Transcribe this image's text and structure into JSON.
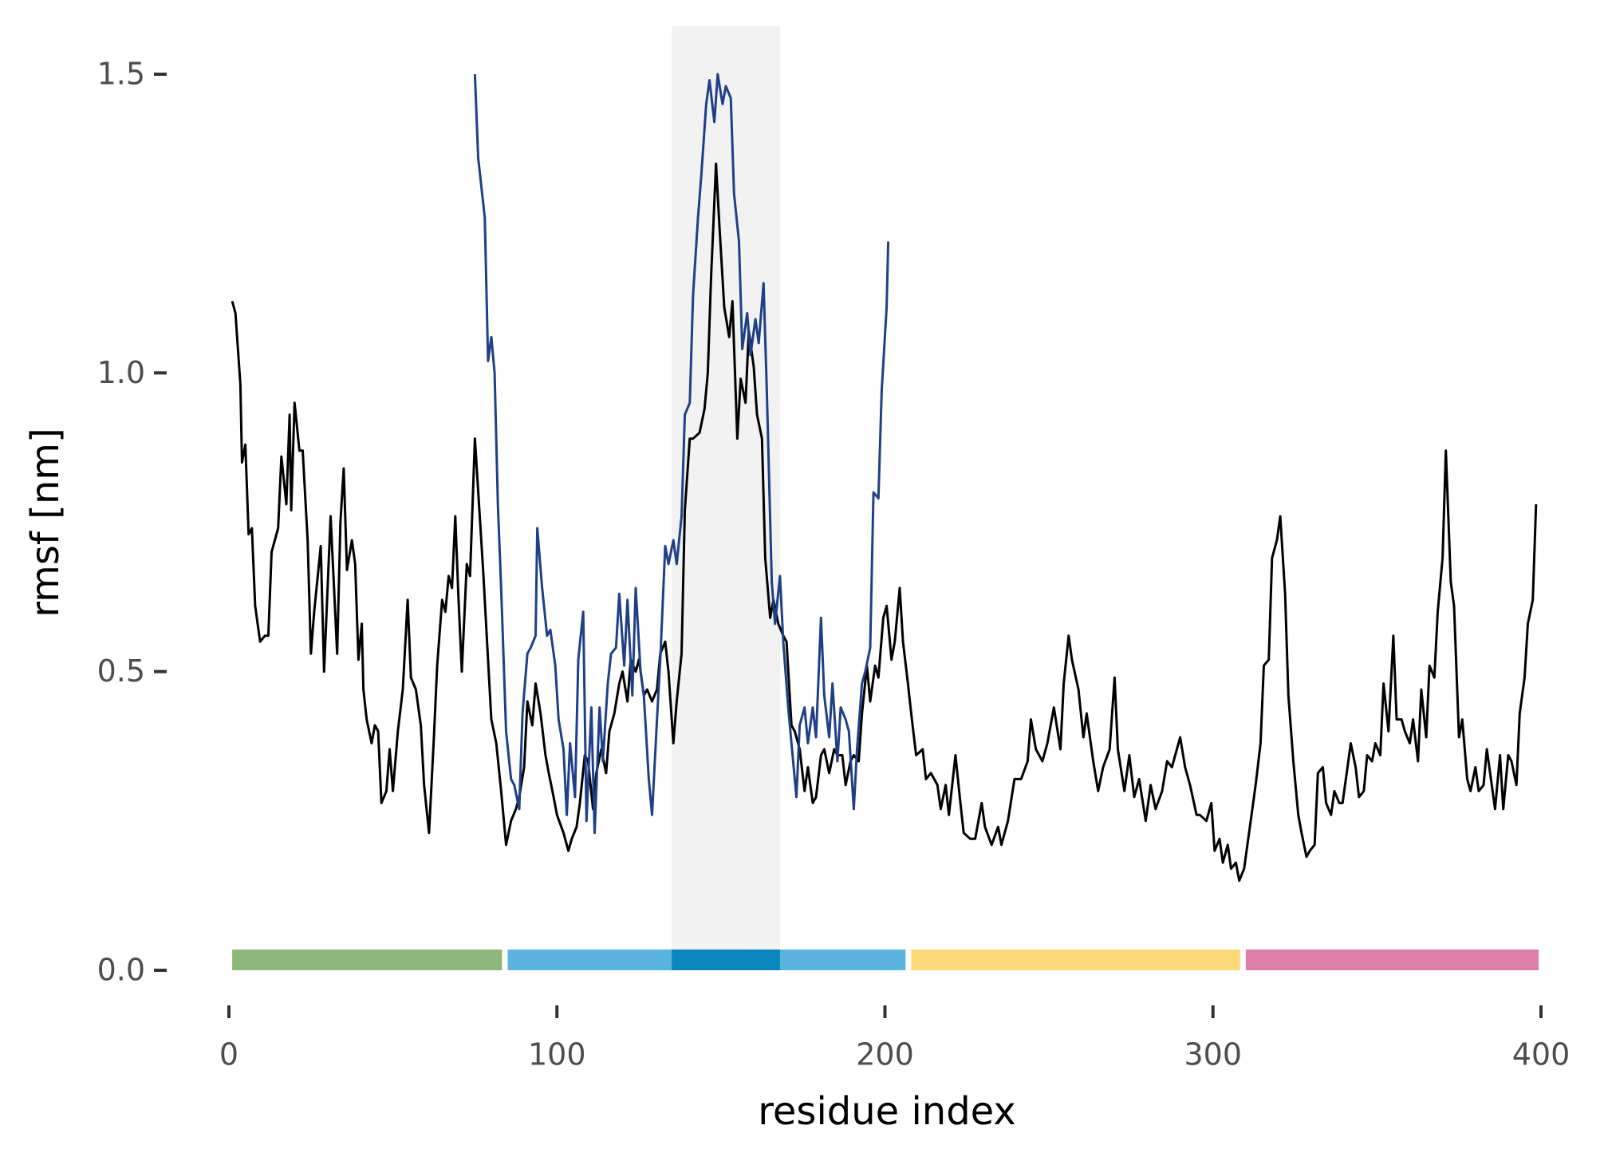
{
  "chart_data": {
    "type": "line",
    "xlabel": "residue index",
    "ylabel": "rmsf [nm]",
    "xlim": [
      0,
      400
    ],
    "ylim": [
      0,
      1.5
    ],
    "xticks": [
      0,
      100,
      200,
      300,
      400
    ],
    "yticks": [
      {
        "value": 0,
        "label": "0.0"
      },
      0.5,
      {
        "value": 1,
        "label": "1.0"
      },
      1.5
    ],
    "highlight": {
      "start": 135,
      "end": 168,
      "color": "#f2f2f2",
      "bar_color": "#0a86bf"
    },
    "domains": [
      {
        "start": 1,
        "end": 84,
        "color": "#8db87b"
      },
      {
        "start": 85,
        "end": 207,
        "color": "#5ab4dd"
      },
      {
        "start": 208,
        "end": 309,
        "color": "#fcd977"
      },
      {
        "start": 310,
        "end": 400,
        "color": "#dc7fa9"
      }
    ],
    "series": [
      {
        "color": "#000000",
        "x": [
          1,
          2,
          3.5,
          4,
          5,
          6,
          7,
          8,
          9.5,
          11,
          12,
          13,
          15,
          16,
          17.5,
          18.5,
          19,
          20,
          21.5,
          22.5,
          24,
          25,
          26,
          28,
          29,
          31,
          33,
          34,
          35,
          36,
          37.5,
          38.5,
          39.5,
          40.5,
          41,
          42,
          43.5,
          44.5,
          45.5,
          46.5,
          48,
          49,
          50,
          51.5,
          53,
          54.5,
          55.5,
          57,
          58.5,
          59.5,
          61,
          62.5,
          63.5,
          65,
          66,
          67,
          68,
          69,
          70,
          71,
          72.5,
          73.5,
          75,
          77.5,
          80,
          81.5,
          83,
          84.5,
          86,
          87.5,
          88.5,
          90,
          91,
          92.5,
          93.5,
          95,
          96.5,
          97.5,
          99,
          100,
          102,
          103.5,
          104.5,
          106,
          107,
          108.5,
          109.5,
          111,
          112,
          113.5,
          115,
          116,
          117.5,
          119,
          120,
          121.5,
          122.5,
          124,
          125,
          126.5,
          127.5,
          129,
          130.5,
          131.5,
          133,
          134,
          135.5,
          136.5,
          138,
          139,
          140.5,
          141.5,
          143.5,
          145,
          146,
          147,
          148.5,
          149.5,
          151,
          152.5,
          153.5,
          155,
          156,
          157.5,
          158.5,
          160,
          161,
          162.5,
          163.5,
          165,
          166,
          167.5,
          169,
          170,
          171.5,
          172.5,
          174,
          175.5,
          176.5,
          178,
          179,
          180.5,
          181.5,
          183,
          184.5,
          185.5,
          187,
          188,
          189.5,
          190.5,
          192,
          193,
          194.5,
          195.5,
          197,
          198,
          199.5,
          200.5,
          202,
          203,
          204.5,
          205.5,
          207,
          208,
          209.5,
          211.5,
          212.5,
          214,
          216,
          217,
          218.5,
          219.5,
          221.5,
          223,
          224,
          226,
          227.5,
          229.5,
          230.5,
          232.5,
          234.5,
          235.5,
          237.5,
          239.5,
          241.5,
          243.5,
          244.5,
          246,
          248,
          249.5,
          251.5,
          253.5,
          254.5,
          256,
          257,
          259,
          260.5,
          261.5,
          263.5,
          265,
          266.5,
          268.5,
          270,
          271,
          273,
          274.5,
          276,
          277.5,
          279.5,
          281,
          282.5,
          284.5,
          286,
          287.5,
          290,
          291.5,
          293,
          295,
          296,
          298,
          299.5,
          300.5,
          302,
          303,
          304.5,
          305.5,
          307,
          308,
          309.5,
          310.5,
          312,
          313,
          314.5,
          315.5,
          317,
          318,
          319.5,
          320.5,
          322,
          323,
          324.5,
          326,
          327,
          328.5,
          329.5,
          331,
          332,
          333.5,
          334.5,
          336,
          337,
          338.5,
          339.5,
          341,
          342,
          343.5,
          344.5,
          346,
          347,
          348.5,
          349.5,
          351,
          352,
          353.5,
          355,
          356,
          357.5,
          358.5,
          360,
          361,
          362.5,
          363.5,
          365,
          366,
          367.5,
          368.5,
          370,
          371,
          372.5,
          373.5,
          375,
          376,
          377.5,
          378.5,
          380,
          381,
          382.5,
          383.5,
          385,
          386,
          387.5,
          388.5,
          390,
          391,
          392.5,
          393.5,
          395,
          396,
          397.5,
          398.5
        ],
        "values": [
          1.12,
          1.1,
          0.98,
          0.85,
          0.88,
          0.73,
          0.74,
          0.61,
          0.55,
          0.56,
          0.56,
          0.7,
          0.74,
          0.86,
          0.78,
          0.93,
          0.77,
          0.95,
          0.87,
          0.87,
          0.72,
          0.53,
          0.6,
          0.71,
          0.5,
          0.76,
          0.53,
          0.75,
          0.84,
          0.67,
          0.72,
          0.68,
          0.52,
          0.58,
          0.47,
          0.42,
          0.38,
          0.41,
          0.4,
          0.28,
          0.3,
          0.37,
          0.3,
          0.4,
          0.47,
          0.62,
          0.49,
          0.47,
          0.41,
          0.31,
          0.23,
          0.39,
          0.51,
          0.62,
          0.6,
          0.66,
          0.64,
          0.76,
          0.62,
          0.5,
          0.68,
          0.66,
          0.89,
          0.67,
          0.42,
          0.38,
          0.3,
          0.21,
          0.25,
          0.27,
          0.29,
          0.34,
          0.45,
          0.41,
          0.48,
          0.43,
          0.36,
          0.33,
          0.29,
          0.26,
          0.23,
          0.2,
          0.22,
          0.24,
          0.28,
          0.36,
          0.35,
          0.27,
          0.33,
          0.37,
          0.33,
          0.4,
          0.43,
          0.48,
          0.5,
          0.45,
          0.52,
          0.5,
          0.52,
          0.46,
          0.47,
          0.45,
          0.47,
          0.53,
          0.55,
          0.5,
          0.38,
          0.45,
          0.53,
          0.77,
          0.89,
          0.89,
          0.9,
          0.94,
          1.0,
          1.16,
          1.35,
          1.25,
          1.11,
          1.06,
          1.12,
          0.89,
          0.99,
          0.95,
          1.07,
          1.01,
          0.93,
          0.89,
          0.69,
          0.59,
          0.62,
          0.58,
          0.56,
          0.55,
          0.41,
          0.4,
          0.37,
          0.3,
          0.34,
          0.28,
          0.29,
          0.36,
          0.37,
          0.33,
          0.37,
          0.36,
          0.36,
          0.31,
          0.35,
          0.36,
          0.35,
          0.43,
          0.51,
          0.45,
          0.51,
          0.49,
          0.59,
          0.61,
          0.52,
          0.55,
          0.64,
          0.55,
          0.48,
          0.43,
          0.36,
          0.37,
          0.32,
          0.33,
          0.31,
          0.27,
          0.31,
          0.26,
          0.36,
          0.28,
          0.23,
          0.22,
          0.22,
          0.28,
          0.24,
          0.21,
          0.24,
          0.21,
          0.25,
          0.32,
          0.32,
          0.35,
          0.42,
          0.37,
          0.35,
          0.38,
          0.44,
          0.37,
          0.48,
          0.56,
          0.52,
          0.47,
          0.39,
          0.43,
          0.35,
          0.3,
          0.34,
          0.37,
          0.49,
          0.37,
          0.3,
          0.36,
          0.29,
          0.32,
          0.25,
          0.31,
          0.27,
          0.3,
          0.35,
          0.34,
          0.39,
          0.34,
          0.31,
          0.26,
          0.26,
          0.25,
          0.28,
          0.2,
          0.22,
          0.18,
          0.21,
          0.17,
          0.18,
          0.15,
          0.17,
          0.21,
          0.27,
          0.31,
          0.38,
          0.51,
          0.52,
          0.69,
          0.72,
          0.76,
          0.63,
          0.46,
          0.35,
          0.26,
          0.23,
          0.19,
          0.2,
          0.21,
          0.33,
          0.34,
          0.28,
          0.26,
          0.3,
          0.28,
          0.28,
          0.34,
          0.38,
          0.34,
          0.29,
          0.3,
          0.36,
          0.35,
          0.38,
          0.36,
          0.48,
          0.4,
          0.56,
          0.42,
          0.42,
          0.4,
          0.38,
          0.42,
          0.35,
          0.47,
          0.39,
          0.51,
          0.49,
          0.6,
          0.69,
          0.87,
          0.65,
          0.61,
          0.39,
          0.42,
          0.32,
          0.3,
          0.34,
          0.3,
          0.31,
          0.37,
          0.31,
          0.27,
          0.36,
          0.27,
          0.36,
          0.35,
          0.31,
          0.43,
          0.49,
          0.58,
          0.62,
          0.78
        ]
      },
      {
        "color": "#1f3f86",
        "x": [
          75,
          76,
          78,
          79,
          80,
          81,
          82,
          83,
          84.5,
          86,
          87,
          88.5,
          89.5,
          91,
          92,
          93.5,
          94,
          95.5,
          97,
          98,
          99.5,
          100.5,
          102,
          103,
          104,
          105.5,
          106.5,
          108,
          109,
          110.5,
          111.5,
          113,
          114,
          115.5,
          116.5,
          118,
          119,
          120.5,
          121.5,
          123,
          124,
          125.5,
          126.5,
          128,
          129,
          130.5,
          131.5,
          133,
          134,
          135.5,
          136.5,
          138,
          139,
          140.5,
          141.5,
          143,
          144,
          145.5,
          146.5,
          148,
          149,
          150.5,
          151.5,
          153,
          154,
          155.5,
          156.5,
          158,
          159,
          160.5,
          161.5,
          163,
          164,
          165.5,
          166.5,
          168,
          169,
          170.5,
          171.5,
          173,
          174,
          175.5,
          176.5,
          178,
          179,
          180.5,
          181.5,
          183,
          184,
          185.5,
          186.5,
          188,
          189,
          190.5,
          191.5,
          193,
          194,
          195.5,
          196.5,
          198,
          199,
          200.5,
          201
        ],
        "values": [
          1.5,
          1.36,
          1.26,
          1.02,
          1.06,
          1.0,
          0.78,
          0.64,
          0.4,
          0.32,
          0.31,
          0.27,
          0.43,
          0.53,
          0.54,
          0.56,
          0.74,
          0.64,
          0.56,
          0.57,
          0.51,
          0.42,
          0.37,
          0.26,
          0.38,
          0.29,
          0.52,
          0.6,
          0.25,
          0.44,
          0.23,
          0.44,
          0.35,
          0.48,
          0.53,
          0.54,
          0.63,
          0.51,
          0.62,
          0.46,
          0.64,
          0.5,
          0.46,
          0.32,
          0.26,
          0.42,
          0.52,
          0.71,
          0.68,
          0.72,
          0.68,
          0.76,
          0.93,
          0.95,
          1.13,
          1.26,
          1.33,
          1.45,
          1.49,
          1.42,
          1.5,
          1.45,
          1.48,
          1.46,
          1.3,
          1.22,
          1.04,
          1.1,
          1.03,
          1.09,
          1.05,
          1.15,
          0.97,
          0.65,
          0.58,
          0.66,
          0.55,
          0.44,
          0.38,
          0.29,
          0.41,
          0.44,
          0.38,
          0.44,
          0.39,
          0.59,
          0.46,
          0.39,
          0.48,
          0.35,
          0.44,
          0.42,
          0.4,
          0.27,
          0.37,
          0.48,
          0.5,
          0.54,
          0.8,
          0.79,
          0.97,
          1.11,
          1.22
        ]
      }
    ]
  }
}
